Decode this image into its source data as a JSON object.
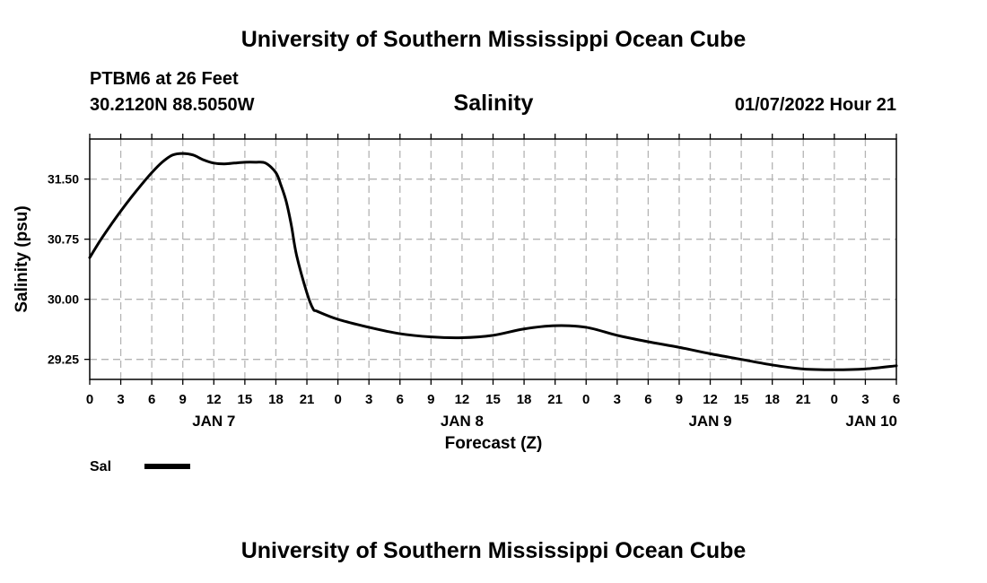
{
  "header": {
    "title": "University of Southern Mississippi Ocean Cube",
    "station": "PTBM6 at 26 Feet",
    "coords": "30.2120N  88.5050W",
    "timestamp": "01/07/2022 Hour 21"
  },
  "footer": {
    "title": "University of Southern Mississippi Ocean Cube"
  },
  "chart_data": {
    "type": "line",
    "title": "Salinity",
    "ylabel": "Salinity (psu)",
    "xlabel": "Forecast (Z)",
    "ylim": [
      29.0,
      32.0
    ],
    "yticks": [
      29.25,
      30.0,
      30.75,
      31.5
    ],
    "ytick_labels": [
      "29.25",
      "30.00",
      "30.75",
      "31.50"
    ],
    "xlim_hours": [
      0,
      78
    ],
    "xtick_labels": [
      "0",
      "3",
      "6",
      "9",
      "12",
      "15",
      "18",
      "21",
      "0",
      "3",
      "6",
      "9",
      "12",
      "15",
      "18",
      "21",
      "0",
      "3",
      "6",
      "9",
      "12",
      "15",
      "18",
      "21",
      "0",
      "3",
      "6"
    ],
    "date_labels": [
      {
        "hour": 12,
        "label": "JAN 7"
      },
      {
        "hour": 36,
        "label": "JAN 8"
      },
      {
        "hour": 60,
        "label": "JAN 9"
      },
      {
        "hour": 78,
        "label": "JAN 10"
      }
    ],
    "grid": true,
    "legend": {
      "position": "bottom-left",
      "label": "Sal"
    },
    "series": [
      {
        "name": "Sal",
        "color": "#000000",
        "x": [
          0,
          1,
          2,
          3,
          4,
          5,
          6,
          7,
          8,
          9,
          10,
          11,
          12,
          13,
          14,
          15,
          16,
          17,
          18,
          18.5,
          19,
          19.5,
          20,
          21,
          21.6,
          22,
          24,
          27,
          30,
          33,
          36,
          39,
          42,
          45,
          48,
          51,
          54,
          57,
          60,
          63,
          66,
          69,
          72,
          75,
          78
        ],
        "values": [
          30.52,
          30.73,
          30.92,
          31.1,
          31.27,
          31.43,
          31.58,
          31.71,
          31.8,
          31.82,
          31.8,
          31.74,
          31.7,
          31.69,
          31.7,
          31.71,
          31.71,
          31.7,
          31.58,
          31.42,
          31.22,
          30.92,
          30.55,
          30.08,
          29.88,
          29.85,
          29.75,
          29.65,
          29.57,
          29.53,
          29.52,
          29.55,
          29.63,
          29.67,
          29.65,
          29.55,
          29.47,
          29.4,
          29.32,
          29.25,
          29.18,
          29.13,
          29.12,
          29.13,
          29.17
        ]
      }
    ]
  }
}
